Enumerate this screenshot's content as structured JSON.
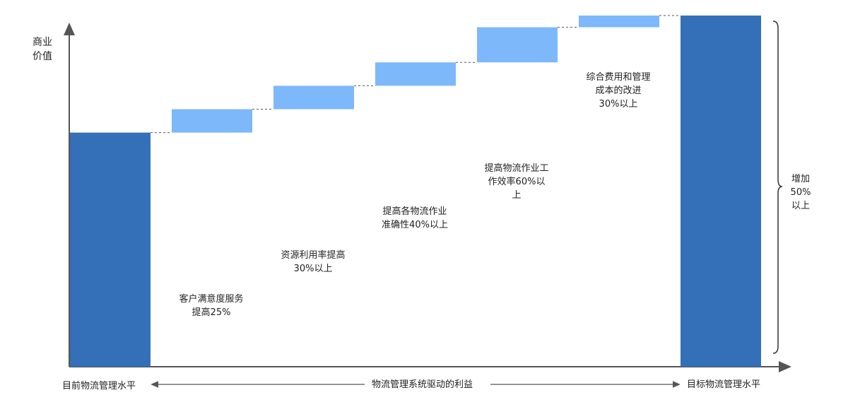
{
  "chart_data": {
    "type": "bar",
    "subtype": "waterfall",
    "ylabel": "商业价值",
    "y_axis_lines": [
      "商业",
      "价值"
    ],
    "baseline": {
      "label": "目前物流管理水平",
      "value": 100
    },
    "target": {
      "label": "目标物流管理水平",
      "value": 150
    },
    "steps": [
      {
        "label_lines": [
          "客户满意度服务",
          "提高25%"
        ],
        "start": 100,
        "end": 110
      },
      {
        "label_lines": [
          "资源利用率提高",
          "30%以上"
        ],
        "start": 110,
        "end": 120
      },
      {
        "label_lines": [
          "提高各物流作业",
          "准确性40%以上"
        ],
        "start": 120,
        "end": 130
      },
      {
        "label_lines": [
          "提高物流作业工",
          "作效率60%以",
          "上"
        ],
        "start": 130,
        "end": 145
      },
      {
        "label_lines": [
          "综合费用和管理",
          "成本的改进",
          "30%以上"
        ],
        "start": 145,
        "end": 150
      }
    ],
    "bracket_label_lines": [
      "增加",
      "50%",
      "以上"
    ],
    "x_axis_caption": "物流管理系统驱动的利益",
    "ylim": [
      0,
      150
    ],
    "colors": {
      "total_bar": "#3370b7",
      "step_bar": "#7db8fb",
      "axis": "#555555",
      "connector": "#555555"
    }
  }
}
